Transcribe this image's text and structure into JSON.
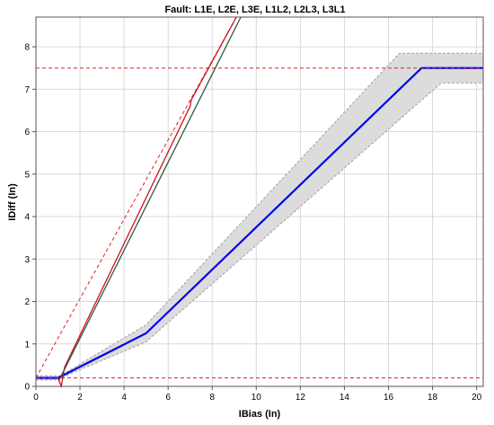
{
  "chart_data": {
    "type": "line",
    "title": "Fault: L1E, L2E, L3E, L1L2, L2L3, L3L1",
    "xlabel": "IBias (In)",
    "ylabel": "IDiff (In)",
    "xlim": [
      0,
      20.3
    ],
    "ylim": [
      0,
      8.7
    ],
    "xticks": [
      0,
      2,
      4,
      6,
      8,
      10,
      12,
      14,
      16,
      18,
      20
    ],
    "yticks": [
      0,
      1,
      2,
      3,
      4,
      5,
      6,
      7,
      8
    ],
    "grid": true,
    "legend": "none",
    "colors": {
      "characteristic": "#0000ee",
      "tolerance_band": "#dcdcdc",
      "tolerance_edge": "#a0a0a0",
      "limit_dashed": "#e02020",
      "red_curve": "#d01020",
      "green_curve": "#2a5a45"
    },
    "series": [
      {
        "role": "characteristic",
        "x": [
          0,
          1.0,
          5.0,
          17.5,
          20.3
        ],
        "y": [
          0.2,
          0.2,
          1.25,
          7.5,
          7.5
        ]
      },
      {
        "role": "tolerance_upper",
        "x": [
          0,
          1.1,
          5.0,
          16.5,
          20.3
        ],
        "y": [
          0.25,
          0.25,
          1.45,
          7.85,
          7.85
        ]
      },
      {
        "role": "tolerance_lower",
        "x": [
          0,
          0.9,
          5.0,
          18.4,
          20.3
        ],
        "y": [
          0.15,
          0.15,
          1.05,
          7.15,
          7.15
        ]
      },
      {
        "role": "limit_dashed",
        "x": [
          0.0,
          9.1
        ],
        "y": [
          0.2,
          8.7
        ]
      },
      {
        "role": "limit_dashed",
        "x": [
          0,
          20.3
        ],
        "y": [
          7.5,
          7.5
        ]
      },
      {
        "role": "limit_dashed",
        "x": [
          0,
          20.3
        ],
        "y": [
          0.2,
          0.2
        ]
      },
      {
        "role": "red_curve",
        "x": [
          1.0,
          1.15,
          1.3,
          7.0,
          7.05,
          9.1
        ],
        "y": [
          0.2,
          0.0,
          0.45,
          6.6,
          6.75,
          8.7
        ]
      },
      {
        "role": "green_curve",
        "x": [
          1.05,
          1.2,
          9.3
        ],
        "y": [
          0.15,
          0.3,
          8.7
        ]
      }
    ]
  }
}
